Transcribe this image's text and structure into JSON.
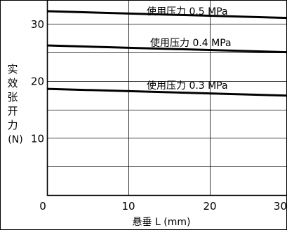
{
  "chart_data": {
    "type": "line",
    "title": "",
    "xlabel": "悬垂 L (mm)",
    "ylabel_chars": [
      "实",
      "效",
      "张",
      "开",
      "力"
    ],
    "ylabel_unit": "(N)",
    "xlim": [
      0,
      30
    ],
    "ylim": [
      0,
      34
    ],
    "x_ticks": [
      0,
      10,
      20,
      30
    ],
    "x_tick_labels": [
      "0",
      "10",
      "20",
      "30"
    ],
    "y_ticks": [
      10,
      20,
      30
    ],
    "y_tick_labels": [
      "10",
      "20",
      "30"
    ],
    "grid": true,
    "legend": "none",
    "series": [
      {
        "name": "使用压力 0.5 MPa",
        "x": [
          0,
          30
        ],
        "y": [
          32.2,
          31.0
        ]
      },
      {
        "name": "使用压力 0.4 MPa",
        "x": [
          0,
          30
        ],
        "y": [
          26.2,
          25.0
        ]
      },
      {
        "name": "使用压力 0.3 MPa",
        "x": [
          0,
          30
        ],
        "y": [
          18.6,
          17.4
        ]
      }
    ],
    "line_color": "#000000",
    "grid_color": "#000000"
  }
}
